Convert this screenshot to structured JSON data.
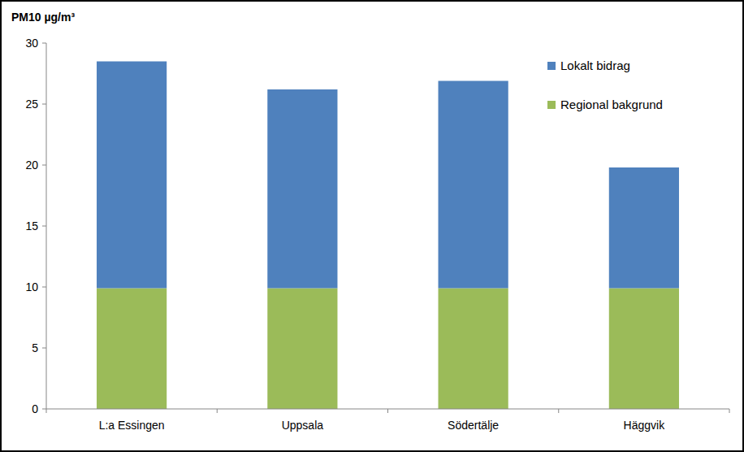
{
  "chart_data": {
    "type": "bar",
    "stacked": true,
    "y_label": "PM10 µg/m³",
    "categories": [
      "L:a Essingen",
      "Uppsala",
      "Södertälje",
      "Häggvik"
    ],
    "series": [
      {
        "name": "Regional bakgrund",
        "color": "#9bbb59",
        "values": [
          9.9,
          9.9,
          9.9,
          9.9
        ]
      },
      {
        "name": "Lokalt bidrag",
        "color": "#4f81bd",
        "values": [
          18.6,
          16.3,
          17.0,
          9.9
        ]
      }
    ],
    "ylim": [
      0,
      30
    ],
    "yticks": [
      0,
      5,
      10,
      15,
      20,
      25,
      30
    ],
    "grid": false,
    "legend": "upper right"
  }
}
